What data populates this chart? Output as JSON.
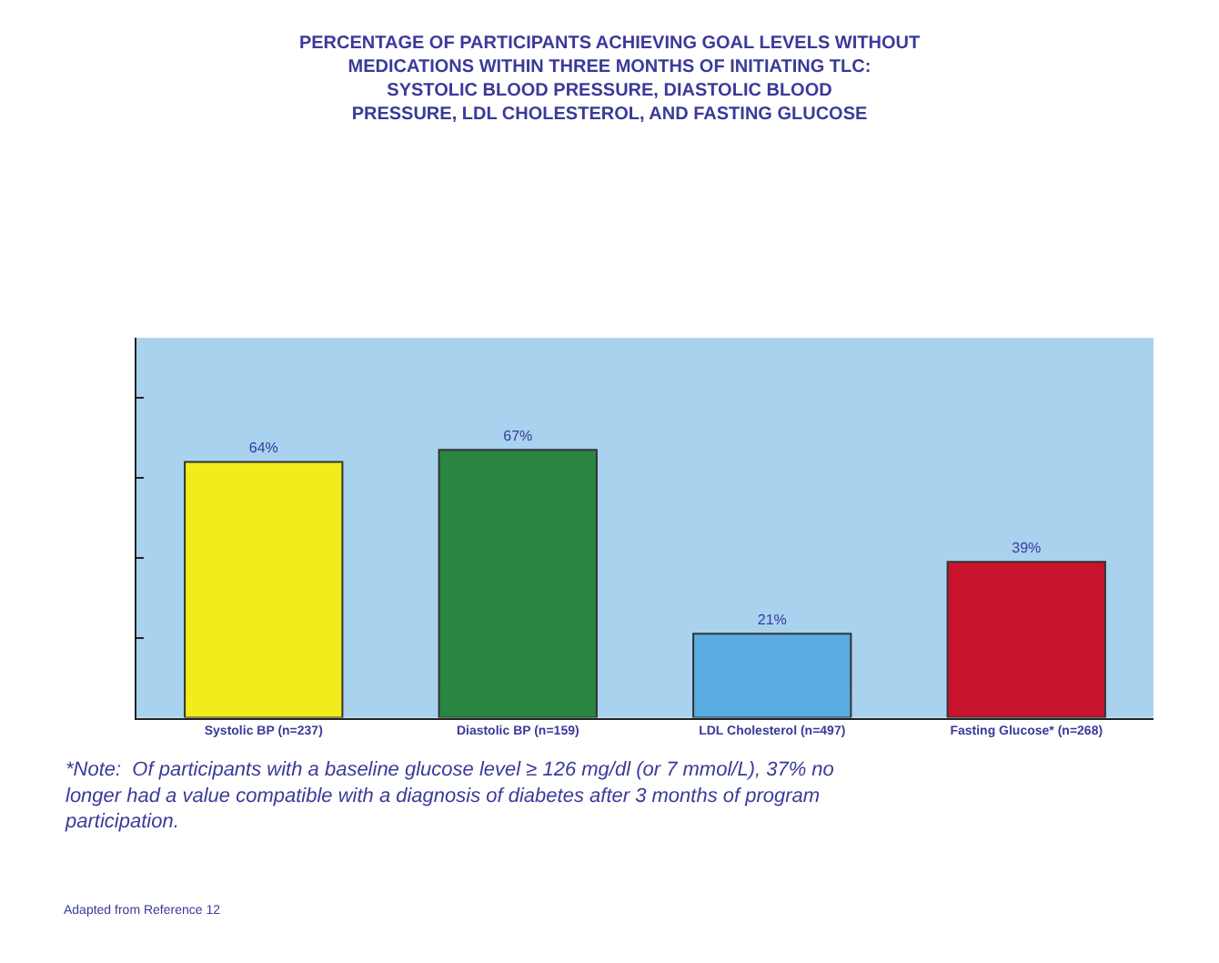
{
  "chart_data": {
    "type": "bar",
    "title": "PERCENTAGE OF PARTICIPANTS ACHIEVING GOAL LEVELS WITHOUT\nMEDICATIONS WITHIN THREE MONTHS OF INITIATING TLC:\nSYSTOLIC BLOOD PRESSURE, DIASTOLIC BLOOD\nPRESSURE, LDL CHOLESTEROL, AND FASTING GLUCOSE",
    "categories": [
      "Systolic BP (n=237)",
      "Diastolic BP (n=159)",
      "LDL Cholesterol (n=497)",
      "Fasting Glucose* (n=268)"
    ],
    "values": [
      64,
      67,
      21,
      39
    ],
    "colors": [
      "#f2ec1c",
      "#2a8540",
      "#58ace0",
      "#c8142c"
    ],
    "value_labels": [
      "64%",
      "67%",
      "21%",
      "39%"
    ],
    "ylim": [
      0,
      95
    ],
    "yticks": [
      {
        "value": 0,
        "label": null
      },
      {
        "value": 20,
        "label": null
      },
      {
        "value": 40,
        "label": null
      },
      {
        "value": 60,
        "label": null
      },
      {
        "value": 80,
        "label": null
      }
    ],
    "tick_labels": "x",
    "annotations": [
      "*Note:  Of participants with a baseline glucose level ≥ 126 mg/dl (or 7 mmol/L), 37% no\nlonger had a value compatible with a diagnosis of diabetes after 3 months of program\nparticipation.",
      "Adapted from Reference 12"
    ]
  }
}
